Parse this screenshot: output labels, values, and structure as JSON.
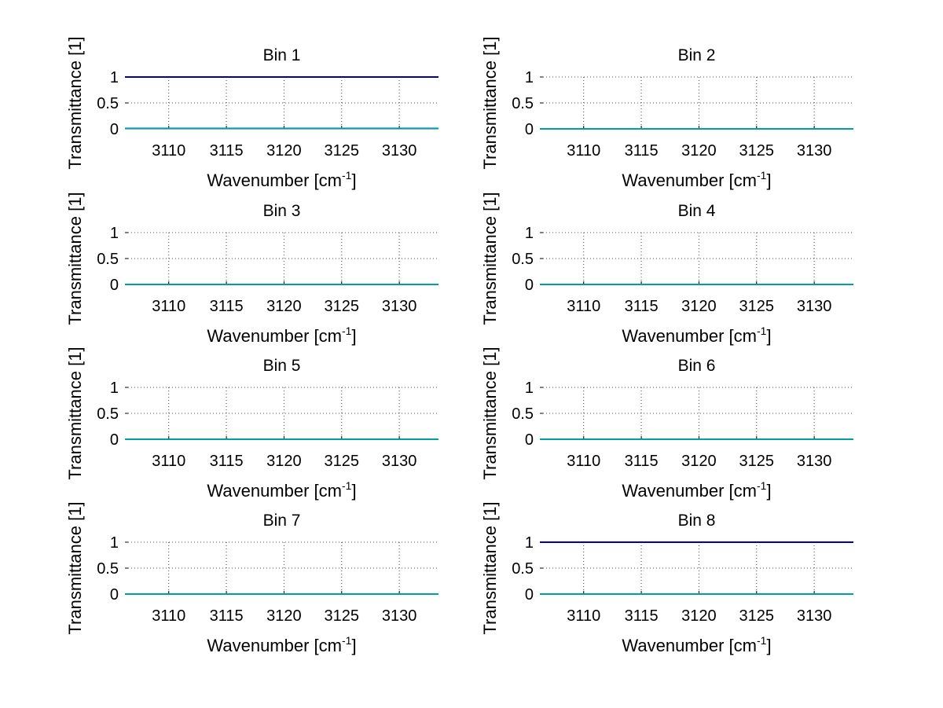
{
  "figure": {
    "background": "#ffffff",
    "rows": 4,
    "cols": 2
  },
  "chart_data": [
    {
      "type": "line",
      "title": "Bin 1",
      "xlabel": "Wavenumber [cm",
      "xlabel_superscript": "-1",
      "xlabel_suffix": "]",
      "ylabel": "Transmittance [1]",
      "xlim": [
        3106.2,
        3133.4
      ],
      "ylim": [
        0,
        1
      ],
      "xticks": [
        3110,
        3115,
        3120,
        3125,
        3130
      ],
      "yticks": [
        0,
        0.5,
        1
      ],
      "ytick_labels": [
        "0",
        "0.5",
        "1"
      ],
      "grid": true,
      "series": [
        {
          "color": "#0000b0",
          "x": [
            3106.2,
            3133.4
          ],
          "y": [
            1,
            1
          ]
        },
        {
          "color": "#00a0a0",
          "x": [
            3106.2,
            3133.4
          ],
          "y": [
            0.01,
            0.01
          ]
        }
      ]
    },
    {
      "type": "line",
      "title": "Bin 2",
      "xlabel": "Wavenumber [cm",
      "xlabel_superscript": "-1",
      "xlabel_suffix": "]",
      "ylabel": "Transmittance [1]",
      "xlim": [
        3106.2,
        3133.4
      ],
      "ylim": [
        0,
        1
      ],
      "xticks": [
        3110,
        3115,
        3120,
        3125,
        3130
      ],
      "yticks": [
        0,
        0.5,
        1
      ],
      "ytick_labels": [
        "0",
        "0.5",
        "1"
      ],
      "grid": true,
      "series": [
        {
          "color": "#00a0a0",
          "x": [
            3106.2,
            3133.4
          ],
          "y": [
            0,
            0
          ]
        }
      ]
    },
    {
      "type": "line",
      "title": "Bin 3",
      "xlabel": "Wavenumber [cm",
      "xlabel_superscript": "-1",
      "xlabel_suffix": "]",
      "ylabel": "Transmittance [1]",
      "xlim": [
        3106.2,
        3133.4
      ],
      "ylim": [
        0,
        1
      ],
      "xticks": [
        3110,
        3115,
        3120,
        3125,
        3130
      ],
      "yticks": [
        0,
        0.5,
        1
      ],
      "ytick_labels": [
        "0",
        "0.5",
        "1"
      ],
      "grid": true,
      "series": [
        {
          "color": "#00a0a0",
          "x": [
            3106.2,
            3133.4
          ],
          "y": [
            0,
            0
          ]
        }
      ]
    },
    {
      "type": "line",
      "title": "Bin 4",
      "xlabel": "Wavenumber [cm",
      "xlabel_superscript": "-1",
      "xlabel_suffix": "]",
      "ylabel": "Transmittance [1]",
      "xlim": [
        3106.2,
        3133.4
      ],
      "ylim": [
        0,
        1
      ],
      "xticks": [
        3110,
        3115,
        3120,
        3125,
        3130
      ],
      "yticks": [
        0,
        0.5,
        1
      ],
      "ytick_labels": [
        "0",
        "0.5",
        "1"
      ],
      "grid": true,
      "series": [
        {
          "color": "#00a0a0",
          "x": [
            3106.2,
            3133.4
          ],
          "y": [
            0,
            0
          ]
        }
      ]
    },
    {
      "type": "line",
      "title": "Bin 5",
      "xlabel": "Wavenumber [cm",
      "xlabel_superscript": "-1",
      "xlabel_suffix": "]",
      "ylabel": "Transmittance [1]",
      "xlim": [
        3106.2,
        3133.4
      ],
      "ylim": [
        0,
        1
      ],
      "xticks": [
        3110,
        3115,
        3120,
        3125,
        3130
      ],
      "yticks": [
        0,
        0.5,
        1
      ],
      "ytick_labels": [
        "0",
        "0.5",
        "1"
      ],
      "grid": true,
      "series": [
        {
          "color": "#00a0a0",
          "x": [
            3106.2,
            3133.4
          ],
          "y": [
            0,
            0
          ]
        }
      ]
    },
    {
      "type": "line",
      "title": "Bin 6",
      "xlabel": "Wavenumber [cm",
      "xlabel_superscript": "-1",
      "xlabel_suffix": "]",
      "ylabel": "Transmittance [1]",
      "xlim": [
        3106.2,
        3133.4
      ],
      "ylim": [
        0,
        1
      ],
      "xticks": [
        3110,
        3115,
        3120,
        3125,
        3130
      ],
      "yticks": [
        0,
        0.5,
        1
      ],
      "ytick_labels": [
        "0",
        "0.5",
        "1"
      ],
      "grid": true,
      "series": [
        {
          "color": "#00a0a0",
          "x": [
            3106.2,
            3133.4
          ],
          "y": [
            0,
            0
          ]
        }
      ]
    },
    {
      "type": "line",
      "title": "Bin 7",
      "xlabel": "Wavenumber [cm",
      "xlabel_superscript": "-1",
      "xlabel_suffix": "]",
      "ylabel": "Transmittance [1]",
      "xlim": [
        3106.2,
        3133.4
      ],
      "ylim": [
        0,
        1
      ],
      "xticks": [
        3110,
        3115,
        3120,
        3125,
        3130
      ],
      "yticks": [
        0,
        0.5,
        1
      ],
      "ytick_labels": [
        "0",
        "0.5",
        "1"
      ],
      "grid": true,
      "series": [
        {
          "color": "#00a0a0",
          "x": [
            3106.2,
            3133.4
          ],
          "y": [
            0,
            0
          ]
        }
      ]
    },
    {
      "type": "line",
      "title": "Bin 8",
      "xlabel": "Wavenumber [cm",
      "xlabel_superscript": "-1",
      "xlabel_suffix": "]",
      "ylabel": "Transmittance [1]",
      "xlim": [
        3106.2,
        3133.4
      ],
      "ylim": [
        0,
        1
      ],
      "xticks": [
        3110,
        3115,
        3120,
        3125,
        3130
      ],
      "yticks": [
        0,
        0.5,
        1
      ],
      "ytick_labels": [
        "0",
        "0.5",
        "1"
      ],
      "grid": true,
      "series": [
        {
          "color": "#0000b0",
          "x": [
            3106.2,
            3133.4
          ],
          "y": [
            1,
            1
          ]
        },
        {
          "color": "#00a0a0",
          "x": [
            3106.2,
            3133.4
          ],
          "y": [
            0,
            0
          ]
        }
      ]
    }
  ]
}
